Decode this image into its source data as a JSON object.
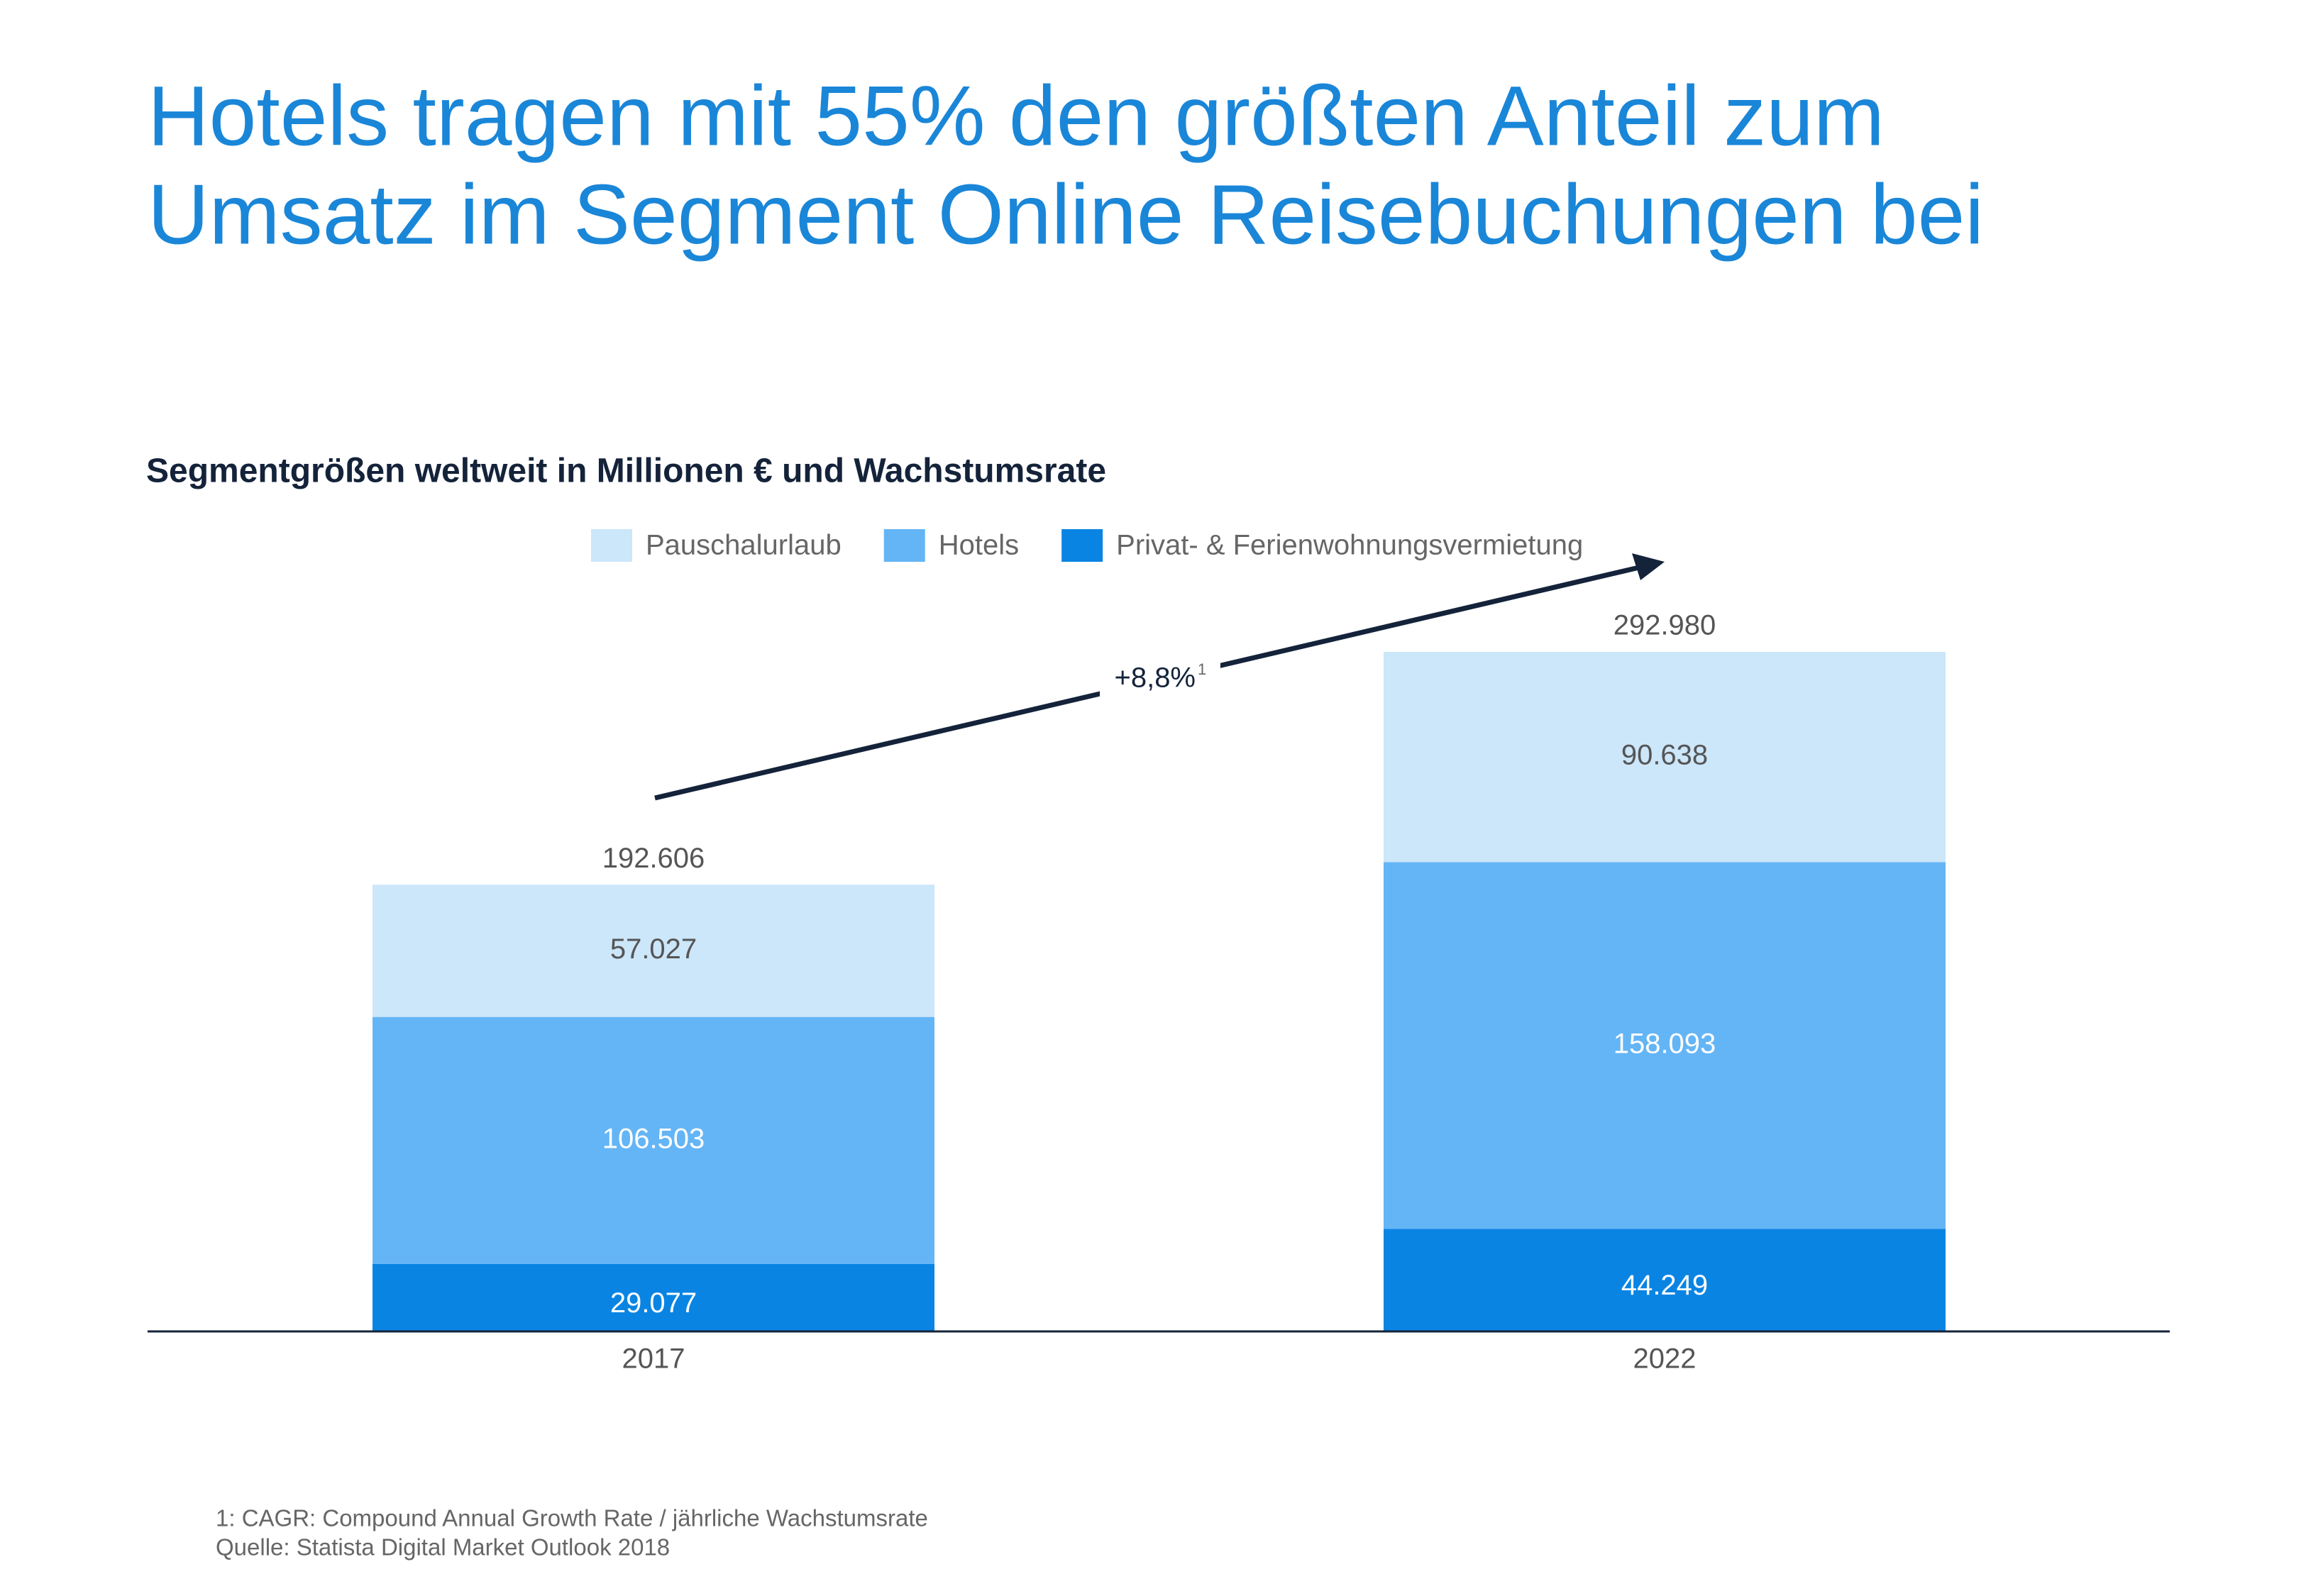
{
  "chart_data": {
    "type": "stacked-bar",
    "title": [
      "Hotels tragen mit 55% den größten Anteil zum",
      "Umsatz im Segment Online Reisebuchungen bei"
    ],
    "subtitle": "Segmentgrößen weltweit in Millionen € und Wachstumsrate",
    "categories": [
      "2017",
      "2022"
    ],
    "series": [
      {
        "name": "Pauschalurlaub",
        "color": "#cce6fa",
        "values": [
          57027,
          90638
        ],
        "value_labels": [
          "57.027",
          "90.638"
        ]
      },
      {
        "name": "Hotels",
        "color": "#64b5f6",
        "values": [
          106503,
          158093
        ],
        "value_labels": [
          "106.503",
          "158.093"
        ]
      },
      {
        "name": "Privat- & Ferienwohnungsvermietung",
        "color": "#0a84e3",
        "values": [
          29077,
          44249
        ],
        "value_labels": [
          "29.077",
          "44.249"
        ]
      }
    ],
    "totals": {
      "values": [
        192606,
        292980
      ],
      "value_labels": [
        "192.606",
        "292.980"
      ]
    },
    "annotation": {
      "text": "+8,8%",
      "footnote_mark": "1"
    },
    "footnotes": [
      "1: CAGR: Compound Annual Growth Rate / jährliche Wachstumsrate",
      "Quelle: Statista Digital Market Outlook 2018"
    ]
  }
}
